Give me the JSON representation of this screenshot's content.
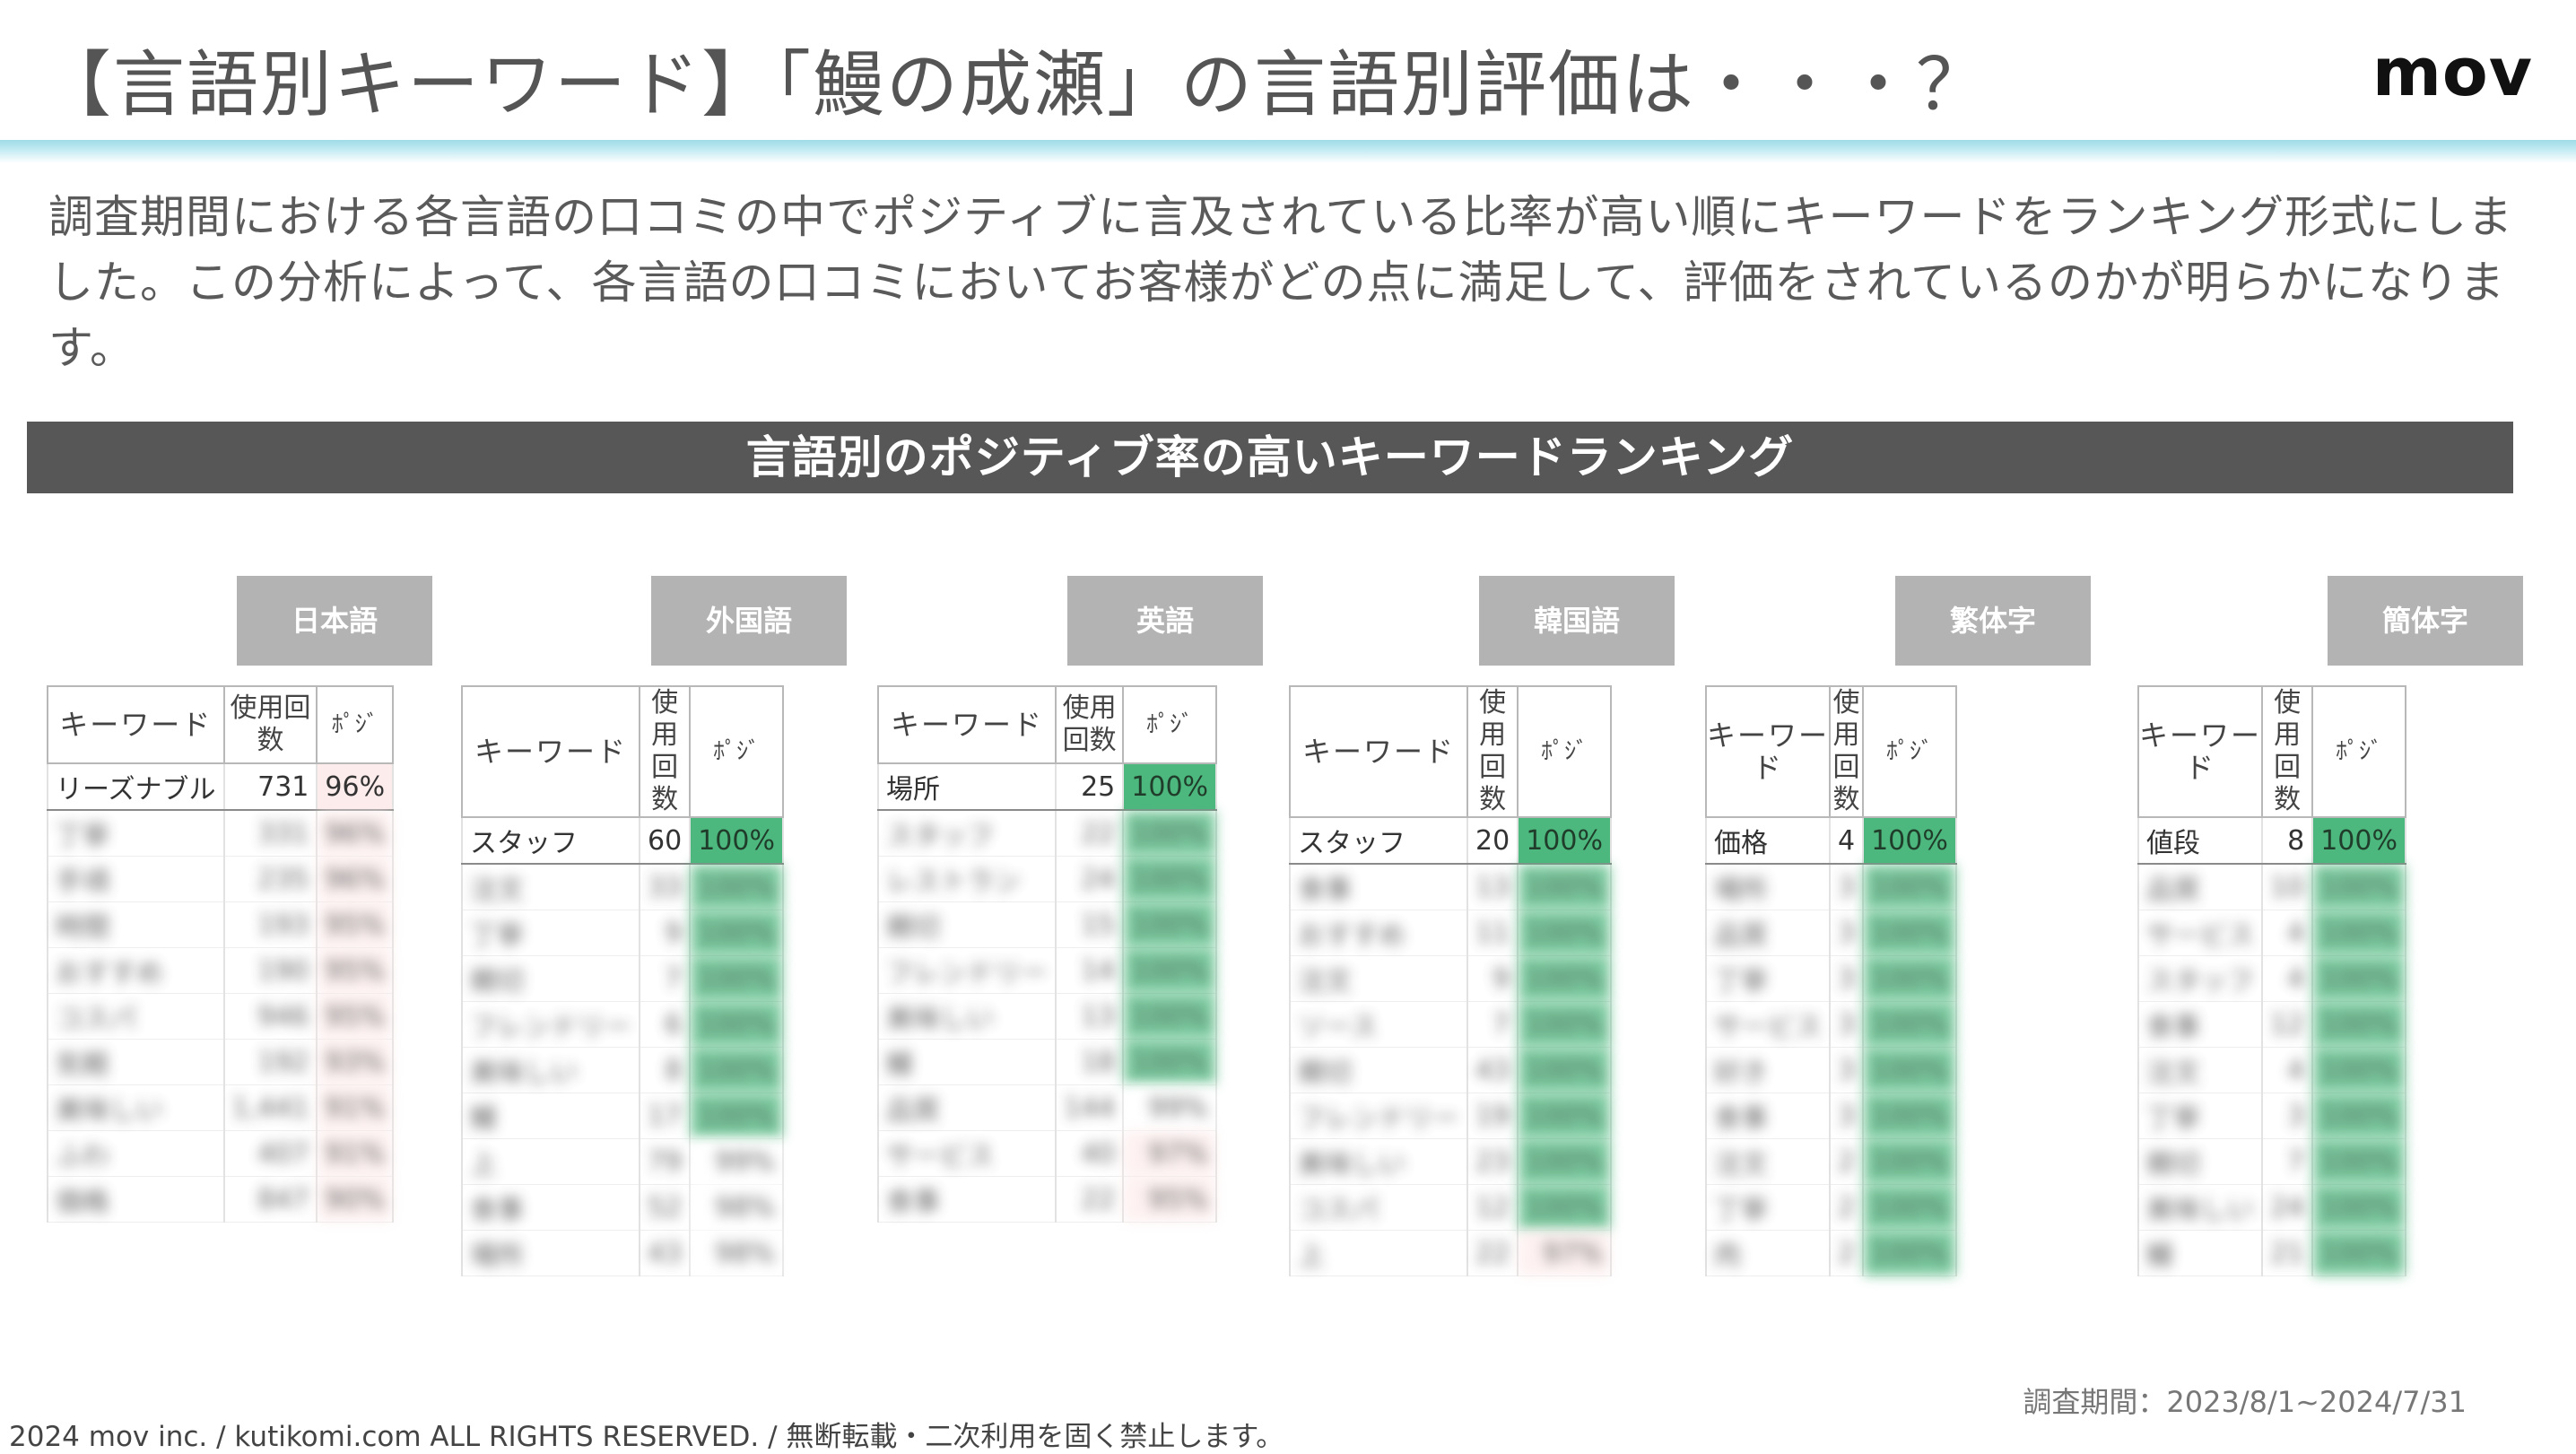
{
  "header": {
    "title": "【言語別キーワード】「鰻の成瀬」の言語別評価は・・・？",
    "logo": "mov"
  },
  "intro_text": "調査期間における各言語の口コミの中でポジティブに言及されている比率が高い順にキーワードをランキング形式にしました。この分析によって、各言語の口コミにおいてお客様がどの点に満足して、評価をされているのかが明らかになります。",
  "section_title": "言語別のポジティブ率の高いキーワードランキング",
  "table_headers": {
    "keyword": "キーワード",
    "uses": "使用回数",
    "positive": "ﾎﾟｼﾞ"
  },
  "languages": [
    {
      "name": "日本語",
      "rows": [
        {
          "keyword": "リーズナブル",
          "uses": "731",
          "pct": "96%",
          "color": "pink"
        },
        {
          "keyword": "丁寧",
          "uses": "331",
          "pct": "96%",
          "color": "pink"
        },
        {
          "keyword": "手頃",
          "uses": "235",
          "pct": "96%",
          "color": "pink"
        },
        {
          "keyword": "時間",
          "uses": "193",
          "pct": "95%",
          "color": "pink"
        },
        {
          "keyword": "おすすめ",
          "uses": "190",
          "pct": "95%",
          "color": "pink"
        },
        {
          "keyword": "コスパ",
          "uses": "946",
          "pct": "95%",
          "color": "pink"
        },
        {
          "keyword": "気軽",
          "uses": "192",
          "pct": "93%",
          "color": "pink"
        },
        {
          "keyword": "美味しい",
          "uses": "1,441",
          "pct": "91%",
          "color": "pink"
        },
        {
          "keyword": "ふわ",
          "uses": "407",
          "pct": "91%",
          "color": "pink"
        },
        {
          "keyword": "価格",
          "uses": "847",
          "pct": "90%",
          "color": "pink"
        }
      ]
    },
    {
      "name": "外国語",
      "rows": [
        {
          "keyword": "スタッフ",
          "uses": "60",
          "pct": "100%",
          "color": "green"
        },
        {
          "keyword": "注文",
          "uses": "33",
          "pct": "100%",
          "color": "green"
        },
        {
          "keyword": "丁寧",
          "uses": "9",
          "pct": "100%",
          "color": "green"
        },
        {
          "keyword": "親切",
          "uses": "7",
          "pct": "100%",
          "color": "green"
        },
        {
          "keyword": "フレンドリー",
          "uses": "6",
          "pct": "100%",
          "color": "green"
        },
        {
          "keyword": "美味しい",
          "uses": "8",
          "pct": "100%",
          "color": "green"
        },
        {
          "keyword": "鰻",
          "uses": "17",
          "pct": "100%",
          "color": "green"
        },
        {
          "keyword": "上",
          "uses": "79",
          "pct": "99%",
          "color": "plain"
        },
        {
          "keyword": "食事",
          "uses": "52",
          "pct": "98%",
          "color": "plain"
        },
        {
          "keyword": "場所",
          "uses": "43",
          "pct": "98%",
          "color": "plain"
        }
      ]
    },
    {
      "name": "英語",
      "rows": [
        {
          "keyword": "場所",
          "uses": "25",
          "pct": "100%",
          "color": "green"
        },
        {
          "keyword": "スタッフ",
          "uses": "22",
          "pct": "100%",
          "color": "green"
        },
        {
          "keyword": "レストラン",
          "uses": "24",
          "pct": "100%",
          "color": "green"
        },
        {
          "keyword": "親切",
          "uses": "15",
          "pct": "100%",
          "color": "green"
        },
        {
          "keyword": "フレンドリー",
          "uses": "14",
          "pct": "100%",
          "color": "green"
        },
        {
          "keyword": "美味しい",
          "uses": "13",
          "pct": "100%",
          "color": "green"
        },
        {
          "keyword": "鰻",
          "uses": "18",
          "pct": "100%",
          "color": "green"
        },
        {
          "keyword": "品質",
          "uses": "144",
          "pct": "99%",
          "color": "plain"
        },
        {
          "keyword": "サービス",
          "uses": "40",
          "pct": "97%",
          "color": "pink"
        },
        {
          "keyword": "食事",
          "uses": "22",
          "pct": "95%",
          "color": "pink"
        }
      ]
    },
    {
      "name": "韓国語",
      "rows": [
        {
          "keyword": "スタッフ",
          "uses": "20",
          "pct": "100%",
          "color": "green"
        },
        {
          "keyword": "食事",
          "uses": "13",
          "pct": "100%",
          "color": "green"
        },
        {
          "keyword": "おすすめ",
          "uses": "11",
          "pct": "100%",
          "color": "green"
        },
        {
          "keyword": "注文",
          "uses": "9",
          "pct": "100%",
          "color": "green"
        },
        {
          "keyword": "ソース",
          "uses": "7",
          "pct": "100%",
          "color": "green"
        },
        {
          "keyword": "親切",
          "uses": "43",
          "pct": "100%",
          "color": "green"
        },
        {
          "keyword": "フレンドリー",
          "uses": "19",
          "pct": "100%",
          "color": "green"
        },
        {
          "keyword": "美味しい",
          "uses": "23",
          "pct": "100%",
          "color": "green"
        },
        {
          "keyword": "コスパ",
          "uses": "12",
          "pct": "100%",
          "color": "green"
        },
        {
          "keyword": "上",
          "uses": "22",
          "pct": "97%",
          "color": "pink"
        }
      ]
    },
    {
      "name": "繁体字",
      "rows": [
        {
          "keyword": "価格",
          "uses": "4",
          "pct": "100%",
          "color": "green"
        },
        {
          "keyword": "場所",
          "uses": "3",
          "pct": "100%",
          "color": "green"
        },
        {
          "keyword": "品質",
          "uses": "3",
          "pct": "100%",
          "color": "green"
        },
        {
          "keyword": "丁寧",
          "uses": "3",
          "pct": "100%",
          "color": "green"
        },
        {
          "keyword": "サービス",
          "uses": "3",
          "pct": "100%",
          "color": "green"
        },
        {
          "keyword": "好き",
          "uses": "3",
          "pct": "100%",
          "color": "green"
        },
        {
          "keyword": "食事",
          "uses": "3",
          "pct": "100%",
          "color": "green"
        },
        {
          "keyword": "注文",
          "uses": "2",
          "pct": "100%",
          "color": "green"
        },
        {
          "keyword": "丁寧",
          "uses": "2",
          "pct": "100%",
          "color": "green"
        },
        {
          "keyword": "肉",
          "uses": "2",
          "pct": "100%",
          "color": "green"
        }
      ]
    },
    {
      "name": "簡体字",
      "rows": [
        {
          "keyword": "値段",
          "uses": "8",
          "pct": "100%",
          "color": "green"
        },
        {
          "keyword": "品質",
          "uses": "10",
          "pct": "100%",
          "color": "green"
        },
        {
          "keyword": "サービス",
          "uses": "4",
          "pct": "100%",
          "color": "green"
        },
        {
          "keyword": "スタッフ",
          "uses": "4",
          "pct": "100%",
          "color": "green"
        },
        {
          "keyword": "食事",
          "uses": "12",
          "pct": "100%",
          "color": "green"
        },
        {
          "keyword": "注文",
          "uses": "4",
          "pct": "100%",
          "color": "green"
        },
        {
          "keyword": "丁寧",
          "uses": "3",
          "pct": "100%",
          "color": "green"
        },
        {
          "keyword": "親切",
          "uses": "7",
          "pct": "100%",
          "color": "green"
        },
        {
          "keyword": "美味しい",
          "uses": "24",
          "pct": "100%",
          "color": "green"
        },
        {
          "keyword": "鰻",
          "uses": "21",
          "pct": "100%",
          "color": "green"
        }
      ]
    }
  ],
  "survey_period": "調査期間：2023/8/1~2024/7/31",
  "footer": "2024 mov inc. / kutikomi.com ALL RIGHTS RESERVED. / 無断転載・二次利用を固く禁止します。",
  "colors": {
    "positive_green": "#4db87e",
    "header_gray": "#575757",
    "tab_gray": "#b3b3b3",
    "accent_cyan": "#9fdbe6"
  }
}
